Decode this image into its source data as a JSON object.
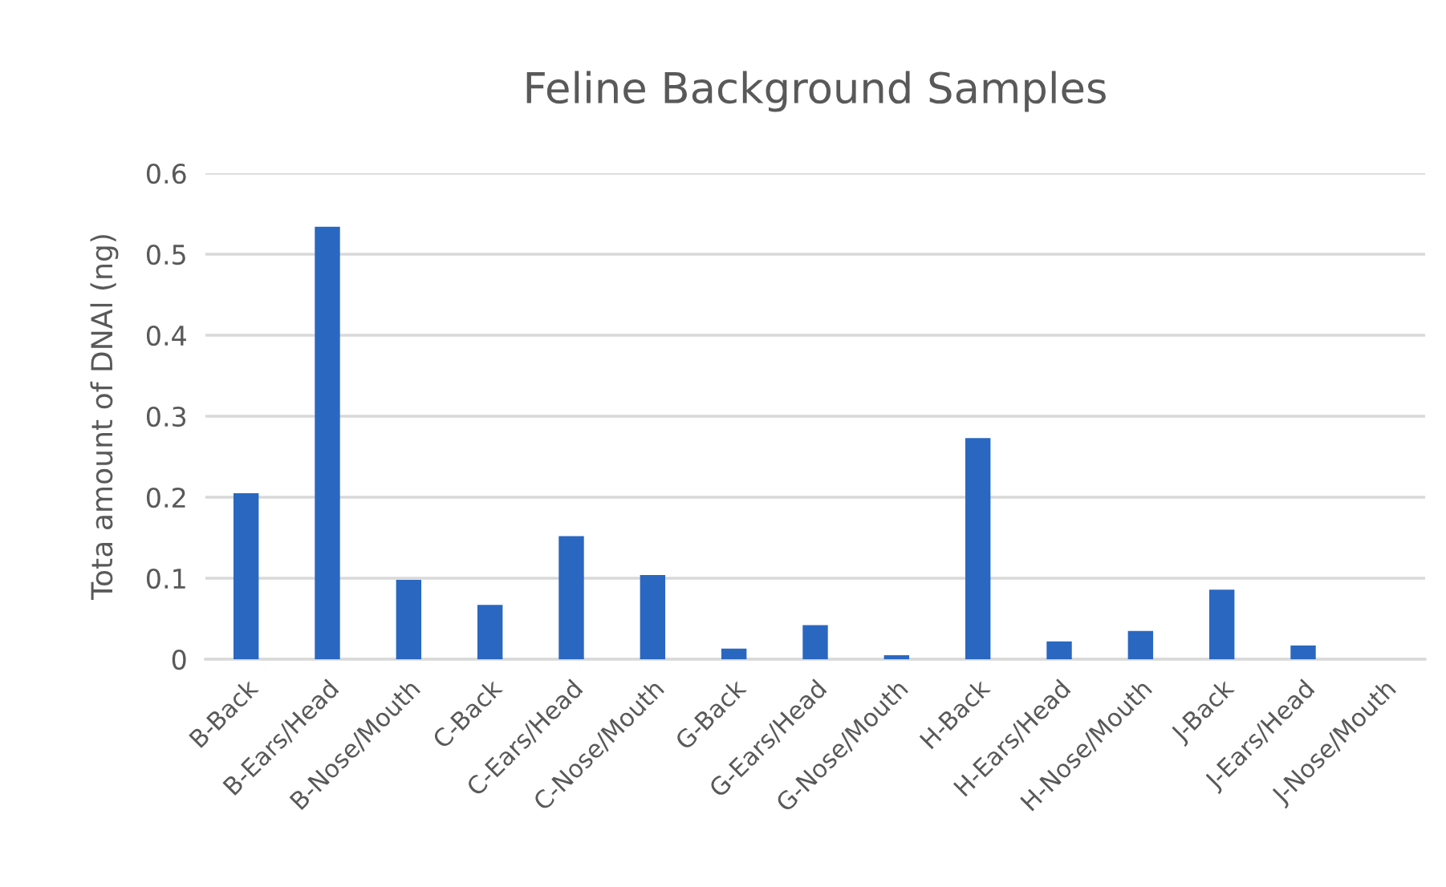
{
  "chart_data": {
    "type": "bar",
    "title": "Feline Background Samples",
    "ylabel": "Tota amount of DNAl (ng)",
    "categories": [
      "B-Back",
      "B-Ears/Head",
      "B-Nose/Mouth",
      "C-Back",
      "C-Ears/Head",
      "C-Nose/Mouth",
      "G-Back",
      "G-Ears/Head",
      "G-Nose/Mouth",
      "H-Back",
      "H-Ears/Head",
      "H-Nose/Mouth",
      "J-Back",
      "J-Ears/Head",
      "J-Nose/Mouth"
    ],
    "values": [
      0.205,
      0.534,
      0.098,
      0.067,
      0.152,
      0.104,
      0.013,
      0.042,
      0.005,
      0.273,
      0.022,
      0.035,
      0.086,
      0.017,
      0
    ],
    "color": "#2a67c0",
    "ylim": [
      0,
      0.6
    ],
    "yticks": [
      0,
      0.1,
      0.2,
      0.3,
      0.4,
      0.5,
      0.6
    ],
    "grid": "y",
    "legend": false
  }
}
